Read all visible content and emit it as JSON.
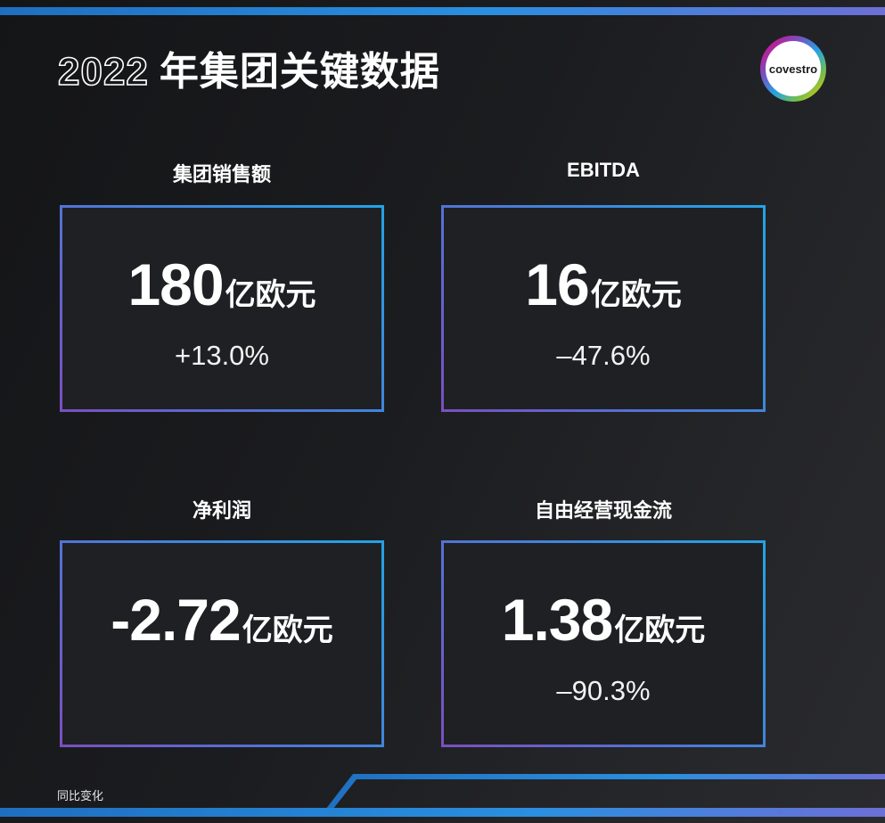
{
  "title": {
    "year": "2022",
    "text": "年集团关键数据"
  },
  "logo": {
    "text": "covestro"
  },
  "cards": [
    {
      "label": "集团销售额",
      "value": "180",
      "unit": "亿欧元",
      "change": "+13.0%"
    },
    {
      "label": "EBITDA",
      "value": "16",
      "unit": "亿欧元",
      "change": "–47.6%"
    },
    {
      "label": "净利润",
      "value": "-2.72",
      "unit": "亿欧元",
      "change": ""
    },
    {
      "label": "自由经营现金流",
      "value": "1.38",
      "unit": "亿欧元",
      "change": "–90.3%"
    }
  ],
  "footnote": "同比变化",
  "colors": {
    "accent_blue": "#23a3e6",
    "accent_purple": "#7a4fc0",
    "background": "#1b1c1f"
  }
}
